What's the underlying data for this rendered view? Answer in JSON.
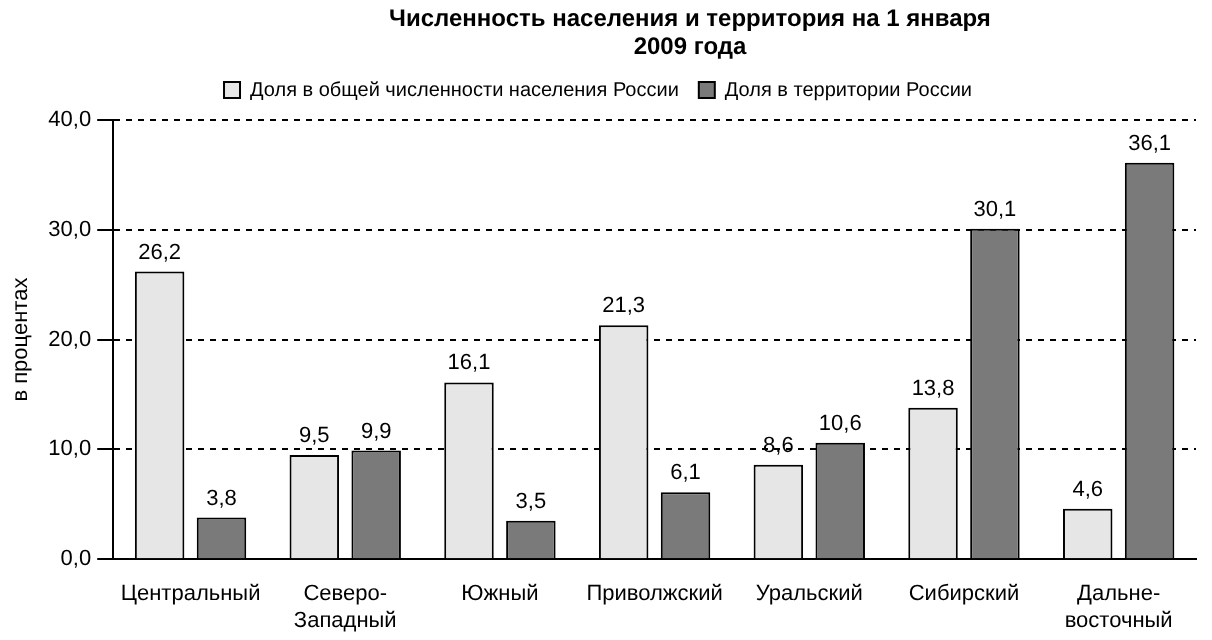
{
  "chart_data": {
    "type": "bar",
    "title": "Численность населения и территория на 1 января 2009 года",
    "ylabel": "в процентах",
    "categories": [
      "Центральный",
      "Северо-Западный",
      "Южный",
      "Приволжский",
      "Уральский",
      "Сибирский",
      "Дальне-восточный"
    ],
    "series": [
      {
        "name": "Доля в общей численности населения России",
        "color": "#e6e6e6",
        "values": [
          26.2,
          9.5,
          16.1,
          21.3,
          8.6,
          13.8,
          4.6
        ],
        "value_labels": [
          "26,2",
          "9,5",
          "16,1",
          "21,3",
          "8,6",
          "13,8",
          "4,6"
        ]
      },
      {
        "name": "Доля в территории России",
        "color": "#7a7a7a",
        "values": [
          3.8,
          9.9,
          3.5,
          6.1,
          10.6,
          30.1,
          36.1
        ],
        "value_labels": [
          "3,8",
          "9,9",
          "3,5",
          "6,1",
          "10,6",
          "30,1",
          "36,1"
        ]
      }
    ],
    "ylim": [
      0,
      40
    ],
    "yticks": [
      {
        "value": 0,
        "label": "0,0"
      },
      {
        "value": 10,
        "label": "10,0"
      },
      {
        "value": 20,
        "label": "20,0"
      },
      {
        "value": 30,
        "label": "30,0"
      },
      {
        "value": 40,
        "label": "40,0"
      }
    ],
    "grid": "y",
    "legend": "top"
  }
}
